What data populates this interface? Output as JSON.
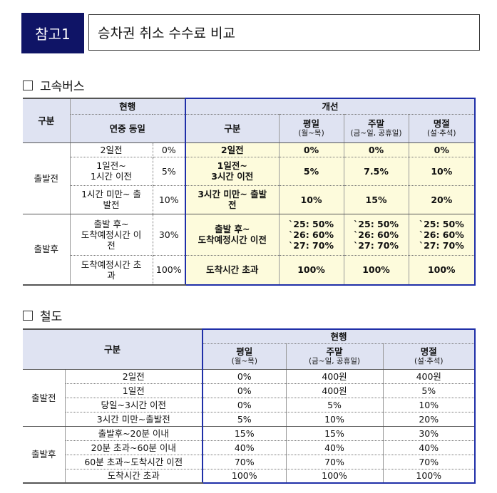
{
  "header": {
    "tag": "참고1",
    "title": "승차권 취소 수수료 비교"
  },
  "bus": {
    "section_title": "고속버스",
    "col_group": "구분",
    "current_label": "현행",
    "current_sub": "연중 동일",
    "improved_label": "개선",
    "improved_col": "구분",
    "weekday": "평일",
    "weekday_sub": "(월~목)",
    "weekend": "주말",
    "weekend_sub": "(금~일, 공휴일)",
    "holiday": "명절",
    "holiday_sub": "(설·추석)",
    "departure_before": "출발전",
    "departure_after": "출발후",
    "rows": [
      {
        "cur": "2일전",
        "rate": "0%",
        "imp": "2일전",
        "wd": "0%",
        "we": "0%",
        "hol": "0%"
      },
      {
        "cur": "1일전~\n1시간 이전",
        "rate": "5%",
        "imp": "1일전~\n3시간 이전",
        "wd": "5%",
        "we": "7.5%",
        "hol": "10%"
      },
      {
        "cur": "1시간 미만~ 출\n발전",
        "rate": "10%",
        "imp": "3시간 미만~ 출발\n전",
        "wd": "10%",
        "we": "15%",
        "hol": "20%"
      },
      {
        "cur": "출발 후~\n도착예정시간 이\n전",
        "rate": "30%",
        "imp": "출발 후~\n도착예정시간 이전",
        "wd": "`25: 50%\n`26: 60%\n`27: 70%",
        "we": "`25: 50%\n`26: 60%\n`27: 70%",
        "hol": "`25: 50%\n`26: 60%\n`27: 70%"
      },
      {
        "cur": "도착예정시간 초\n과",
        "rate": "100%",
        "imp": "도착시간 초과",
        "wd": "100%",
        "we": "100%",
        "hol": "100%"
      }
    ]
  },
  "rail": {
    "section_title": "철도",
    "col_group": "구분",
    "current_label": "현행",
    "weekday": "평일",
    "weekday_sub": "(월~목)",
    "weekend": "주말",
    "weekend_sub": "(금~일, 공휴일)",
    "holiday": "명절",
    "holiday_sub": "(설·추석)",
    "departure_before": "출발전",
    "departure_after": "출발후",
    "rows": [
      {
        "label": "2일전",
        "wd": "0%",
        "we": "400원",
        "hol": "400원"
      },
      {
        "label": "1일전",
        "wd": "0%",
        "we": "400원",
        "hol": "5%"
      },
      {
        "label": "당일~3시간 이전",
        "wd": "0%",
        "we": "5%",
        "hol": "10%"
      },
      {
        "label": "3시간 미만~출발전",
        "wd": "5%",
        "we": "10%",
        "hol": "20%"
      },
      {
        "label": "출발후~20분 이내",
        "wd": "15%",
        "we": "15%",
        "hol": "30%"
      },
      {
        "label": "20분 초과~60분 이내",
        "wd": "40%",
        "we": "40%",
        "hol": "40%"
      },
      {
        "label": "60분 초과~도착시간 이전",
        "wd": "70%",
        "we": "70%",
        "hol": "70%"
      },
      {
        "label": "도착시간 초과",
        "wd": "100%",
        "we": "100%",
        "hol": "100%"
      }
    ]
  }
}
